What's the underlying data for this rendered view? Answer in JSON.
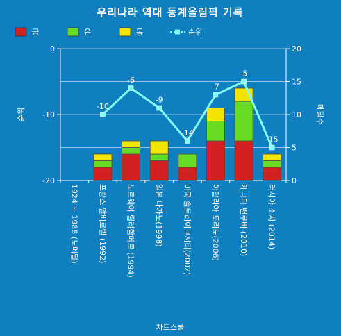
{
  "chart_data": {
    "type": "bar",
    "title": "우리나라 역대 동계올림픽 기록",
    "footer": "차트스쿨",
    "ylabel_left": "순위",
    "ylabel_right": "메달수",
    "categories": [
      "1924 ~ 1988 (노메달)",
      "프랑스 알베르빌 (1992)",
      "노르웨이 릴레함메르 (1994)",
      "일본 나가노(1998)",
      "미국 솔트레이크시티(2002)",
      "이탈리아 토리노(2006)",
      "캐나다 밴쿠버 (2010)",
      "러시아 소치 (2014)"
    ],
    "left_axis": {
      "min": -20,
      "max": 0,
      "ticks": [
        0,
        -10,
        -20
      ]
    },
    "right_axis": {
      "min": 0,
      "max": 20,
      "ticks": [
        20,
        15,
        10,
        5,
        0
      ]
    },
    "series": [
      {
        "name": "금",
        "kind": "bar",
        "axis": "right",
        "color": "#d42020",
        "values": [
          0,
          2,
          4,
          3,
          2,
          6,
          6,
          2
        ]
      },
      {
        "name": "은",
        "kind": "bar",
        "axis": "right",
        "color": "#66dd22",
        "values": [
          0,
          1,
          1,
          1,
          2,
          3,
          6,
          1
        ]
      },
      {
        "name": "동",
        "kind": "bar",
        "axis": "right",
        "color": "#f2e600",
        "values": [
          0,
          1,
          1,
          2,
          0,
          2,
          2,
          1
        ]
      },
      {
        "name": "순위",
        "kind": "line",
        "axis": "left",
        "color": "#7fffff",
        "values": [
          null,
          -10,
          -6,
          -9,
          -14,
          -7,
          -5,
          -15
        ]
      }
    ],
    "grid": true,
    "legend_position": "top-left"
  }
}
